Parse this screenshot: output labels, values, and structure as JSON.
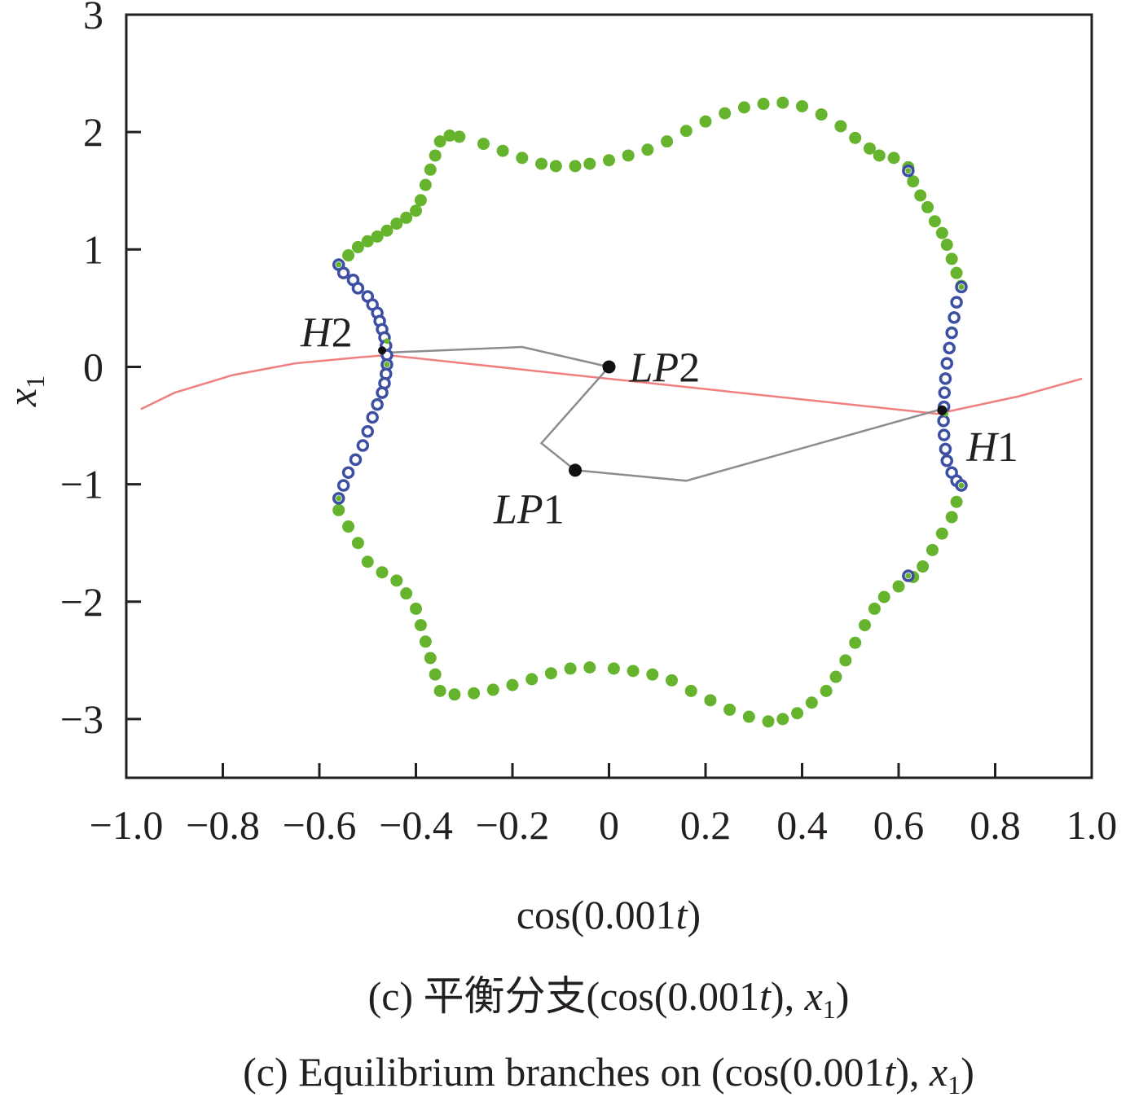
{
  "chart_data": {
    "type": "scatter",
    "xlabel": "cos(0.001t)",
    "ylabel": "x1",
    "xlim": [
      -1.0,
      1.0
    ],
    "ylim": [
      -3.5,
      3
    ],
    "x_ticks": [
      -1.0,
      -0.8,
      -0.6,
      -0.4,
      -0.2,
      0,
      0.2,
      0.4,
      0.6,
      0.8,
      1.0
    ],
    "x_tick_labels": [
      "−1.0",
      "−0.8",
      "−0.6",
      "−0.4",
      "−0.2",
      "0",
      "0.2",
      "0.4",
      "0.6",
      "0.8",
      "1.0"
    ],
    "y_ticks": [
      3,
      2,
      1,
      0,
      -1,
      -2,
      -3
    ],
    "y_tick_labels": [
      "3",
      "2",
      "1",
      "0",
      "−1",
      "−2",
      "−3"
    ],
    "grid": false,
    "legend": "none",
    "captions": {
      "zh": "(c)  平衡分支(cos(0.001t), x1)",
      "en": "(c)  Equilibrium branches on (cos(0.001t), x1)"
    },
    "colors": {
      "stable_branch": "#66b32e",
      "unstable_branch": "#3d4fa3",
      "trajectory": "#8c8c8c",
      "red_curve": "#f07f7f",
      "special_points": "#111111"
    },
    "series": [
      {
        "kind": "line",
        "color_key": "red_curve",
        "points": [
          [
            -0.97,
            -0.36
          ],
          [
            -0.9,
            -0.22
          ],
          [
            -0.78,
            -0.07
          ],
          [
            -0.65,
            0.03
          ],
          [
            -0.52,
            0.08
          ],
          [
            -0.46,
            0.1
          ],
          [
            0.68,
            -0.4
          ],
          [
            0.85,
            -0.25
          ],
          [
            0.98,
            -0.1
          ]
        ]
      },
      {
        "kind": "line",
        "color_key": "trajectory",
        "points": [
          [
            -0.47,
            0.12
          ],
          [
            -0.18,
            0.17
          ],
          [
            0.0,
            0.0
          ],
          [
            -0.14,
            -0.65
          ],
          [
            -0.07,
            -0.88
          ],
          [
            0.16,
            -0.97
          ],
          [
            0.68,
            -0.37
          ]
        ]
      },
      {
        "kind": "markers-filled",
        "color_key": "stable_branch",
        "points": [
          [
            -0.56,
            0.87
          ],
          [
            -0.54,
            0.95
          ],
          [
            -0.52,
            1.02
          ],
          [
            -0.5,
            1.07
          ],
          [
            -0.48,
            1.11
          ],
          [
            -0.46,
            1.16
          ],
          [
            -0.44,
            1.22
          ],
          [
            -0.42,
            1.27
          ],
          [
            -0.4,
            1.33
          ],
          [
            -0.39,
            1.42
          ],
          [
            -0.38,
            1.55
          ],
          [
            -0.37,
            1.68
          ],
          [
            -0.36,
            1.8
          ],
          [
            -0.35,
            1.92
          ],
          [
            -0.33,
            1.97
          ],
          [
            -0.31,
            1.96
          ],
          [
            -0.26,
            1.9
          ],
          [
            -0.22,
            1.84
          ],
          [
            -0.18,
            1.78
          ],
          [
            -0.14,
            1.73
          ],
          [
            -0.11,
            1.71
          ],
          [
            -0.07,
            1.71
          ],
          [
            -0.04,
            1.73
          ],
          [
            0.0,
            1.76
          ],
          [
            0.04,
            1.8
          ],
          [
            0.08,
            1.85
          ],
          [
            0.12,
            1.92
          ],
          [
            0.16,
            2.01
          ],
          [
            0.2,
            2.09
          ],
          [
            0.24,
            2.16
          ],
          [
            0.28,
            2.21
          ],
          [
            0.32,
            2.24
          ],
          [
            0.36,
            2.25
          ],
          [
            0.4,
            2.22
          ],
          [
            0.44,
            2.15
          ],
          [
            0.48,
            2.05
          ],
          [
            0.51,
            1.95
          ],
          [
            0.54,
            1.86
          ],
          [
            0.56,
            1.8
          ],
          [
            0.59,
            1.78
          ],
          [
            0.62,
            1.7
          ],
          [
            0.63,
            1.58
          ],
          [
            0.645,
            1.46
          ],
          [
            0.66,
            1.36
          ],
          [
            0.675,
            1.24
          ],
          [
            0.69,
            1.14
          ],
          [
            0.7,
            1.04
          ],
          [
            0.71,
            0.92
          ],
          [
            0.72,
            0.8
          ],
          [
            0.73,
            0.69
          ],
          [
            0.73,
            -1.01
          ],
          [
            0.72,
            -1.15
          ],
          [
            0.71,
            -1.28
          ],
          [
            0.69,
            -1.42
          ],
          [
            0.67,
            -1.56
          ],
          [
            0.65,
            -1.7
          ],
          [
            0.63,
            -1.79
          ],
          [
            0.6,
            -1.87
          ],
          [
            0.57,
            -1.96
          ],
          [
            0.55,
            -2.06
          ],
          [
            0.53,
            -2.2
          ],
          [
            0.51,
            -2.35
          ],
          [
            0.49,
            -2.5
          ],
          [
            0.47,
            -2.64
          ],
          [
            0.45,
            -2.76
          ],
          [
            0.42,
            -2.86
          ],
          [
            0.39,
            -2.95
          ],
          [
            0.36,
            -3.0
          ],
          [
            0.33,
            -3.02
          ],
          [
            0.29,
            -2.98
          ],
          [
            0.25,
            -2.92
          ],
          [
            0.21,
            -2.84
          ],
          [
            0.17,
            -2.76
          ],
          [
            0.13,
            -2.67
          ],
          [
            0.09,
            -2.62
          ],
          [
            0.05,
            -2.59
          ],
          [
            0.01,
            -2.57
          ],
          [
            -0.04,
            -2.56
          ],
          [
            -0.08,
            -2.57
          ],
          [
            -0.12,
            -2.61
          ],
          [
            -0.16,
            -2.66
          ],
          [
            -0.2,
            -2.71
          ],
          [
            -0.24,
            -2.75
          ],
          [
            -0.28,
            -2.78
          ],
          [
            -0.32,
            -2.79
          ],
          [
            -0.35,
            -2.76
          ],
          [
            -0.36,
            -2.62
          ],
          [
            -0.37,
            -2.48
          ],
          [
            -0.38,
            -2.34
          ],
          [
            -0.39,
            -2.2
          ],
          [
            -0.4,
            -2.06
          ],
          [
            -0.42,
            -1.93
          ],
          [
            -0.44,
            -1.82
          ],
          [
            -0.47,
            -1.75
          ],
          [
            -0.5,
            -1.66
          ],
          [
            -0.52,
            -1.5
          ],
          [
            -0.54,
            -1.36
          ],
          [
            -0.56,
            -1.22
          ],
          [
            -0.56,
            -1.12
          ]
        ]
      },
      {
        "kind": "markers-open",
        "color_key": "unstable_branch",
        "points": [
          [
            -0.56,
            0.87
          ],
          [
            -0.55,
            0.8
          ],
          [
            -0.53,
            0.74
          ],
          [
            -0.52,
            0.67
          ],
          [
            -0.5,
            0.6
          ],
          [
            -0.49,
            0.53
          ],
          [
            -0.48,
            0.46
          ],
          [
            -0.475,
            0.39
          ],
          [
            -0.47,
            0.32
          ],
          [
            -0.465,
            0.25
          ],
          [
            -0.462,
            0.18
          ],
          [
            -0.46,
            0.1
          ],
          [
            -0.46,
            0.02
          ],
          [
            -0.462,
            -0.06
          ],
          [
            -0.465,
            -0.14
          ],
          [
            -0.47,
            -0.22
          ],
          [
            -0.48,
            -0.32
          ],
          [
            -0.49,
            -0.43
          ],
          [
            -0.5,
            -0.55
          ],
          [
            -0.51,
            -0.67
          ],
          [
            -0.525,
            -0.79
          ],
          [
            -0.54,
            -0.9
          ],
          [
            -0.55,
            -1.01
          ],
          [
            -0.56,
            -1.12
          ],
          [
            0.62,
            1.67
          ],
          [
            0.73,
            0.68
          ],
          [
            0.72,
            0.55
          ],
          [
            0.715,
            0.42
          ],
          [
            0.71,
            0.29
          ],
          [
            0.705,
            0.16
          ],
          [
            0.7,
            0.03
          ],
          [
            0.697,
            -0.1
          ],
          [
            0.695,
            -0.22
          ],
          [
            0.694,
            -0.34
          ],
          [
            0.693,
            -0.46
          ],
          [
            0.694,
            -0.58
          ],
          [
            0.697,
            -0.7
          ],
          [
            0.7,
            -0.8
          ],
          [
            0.71,
            -0.9
          ],
          [
            0.72,
            -0.97
          ],
          [
            0.73,
            -1.01
          ],
          [
            0.62,
            -1.78
          ]
        ]
      },
      {
        "kind": "markers-small-green",
        "color_key": "stable_branch",
        "points": [
          [
            -0.56,
            0.87
          ],
          [
            -0.46,
            0.22
          ],
          [
            -0.46,
            0.02
          ],
          [
            -0.56,
            -1.12
          ],
          [
            0.62,
            1.67
          ],
          [
            0.73,
            0.68
          ],
          [
            0.697,
            -0.4
          ],
          [
            0.73,
            -1.01
          ],
          [
            0.62,
            -1.78
          ]
        ]
      }
    ],
    "special_points": [
      {
        "label": "LP1",
        "x": -0.07,
        "y": -0.88
      },
      {
        "label": "LP2",
        "x": 0.0,
        "y": 0.0
      },
      {
        "label": "H1",
        "x": 0.69,
        "y": -0.37
      },
      {
        "label": "H2",
        "x": -0.47,
        "y": 0.14
      }
    ]
  }
}
